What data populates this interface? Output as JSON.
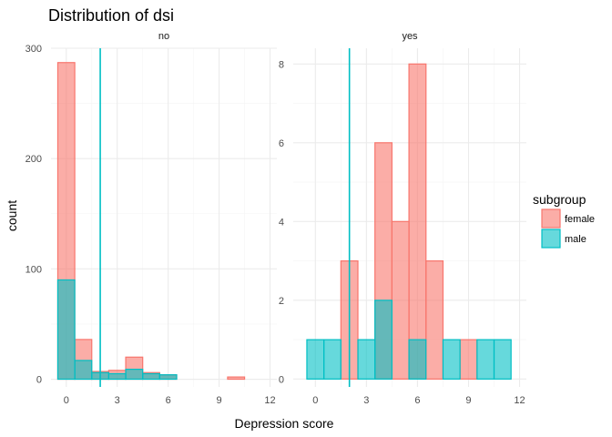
{
  "chart_data": {
    "type": "bar",
    "title": "Distribution of dsi",
    "xlabel": "Depression score",
    "ylabel": "count",
    "legend": {
      "title": "subgroup",
      "position": "right",
      "entries": [
        {
          "name": "female",
          "fill": "#F8766D",
          "stroke": "#F8766D"
        },
        {
          "name": "male",
          "fill": "#00BFC4",
          "stroke": "#00BFC4"
        }
      ]
    },
    "bin_width": 1,
    "grid": true,
    "panels": [
      {
        "strip": "no",
        "xlim": [
          -0.9,
          12.4
        ],
        "ylim": [
          -7,
          300
        ],
        "x_ticks": [
          0,
          3,
          6,
          9,
          12
        ],
        "y_ticks": [
          0,
          100,
          200,
          300
        ],
        "vline": 2,
        "series": [
          {
            "name": "female",
            "bins": [
              [
                0,
                287
              ],
              [
                1,
                36
              ],
              [
                2,
                7
              ],
              [
                3,
                8
              ],
              [
                4,
                20
              ],
              [
                5,
                6
              ],
              [
                6,
                4
              ],
              [
                10,
                2
              ]
            ]
          },
          {
            "name": "male",
            "bins": [
              [
                0,
                90
              ],
              [
                1,
                17
              ],
              [
                2,
                6
              ],
              [
                3,
                5
              ],
              [
                4,
                9
              ],
              [
                5,
                5
              ],
              [
                6,
                4
              ]
            ]
          }
        ]
      },
      {
        "strip": "yes",
        "xlim": [
          -1.3,
          12.4
        ],
        "ylim": [
          -0.2,
          8.4
        ],
        "x_ticks": [
          0,
          3,
          6,
          9,
          12
        ],
        "y_ticks": [
          0,
          2,
          4,
          6,
          8
        ],
        "vline": 2,
        "series": [
          {
            "name": "female",
            "bins": [
              [
                2,
                3
              ],
              [
                4,
                6
              ],
              [
                5,
                4
              ],
              [
                6,
                8
              ],
              [
                7,
                3
              ],
              [
                9,
                1
              ]
            ]
          },
          {
            "name": "male",
            "bins": [
              [
                0,
                1
              ],
              [
                1,
                1
              ],
              [
                3,
                1
              ],
              [
                4,
                2
              ],
              [
                6,
                1
              ],
              [
                8,
                1
              ],
              [
                10,
                1
              ],
              [
                11,
                1
              ]
            ]
          }
        ]
      }
    ]
  }
}
